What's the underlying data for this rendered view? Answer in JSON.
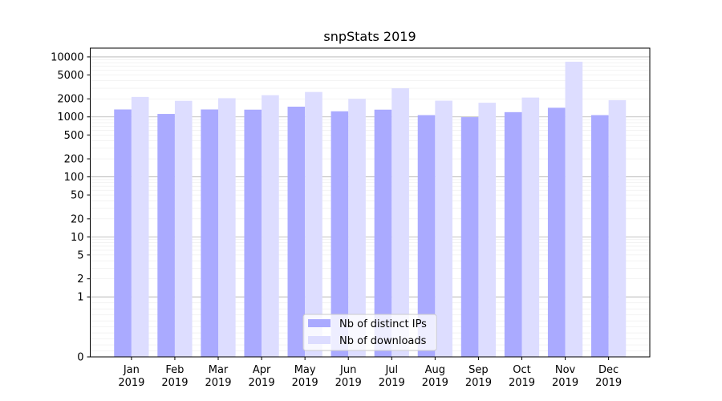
{
  "chart_data": {
    "type": "bar",
    "title": "snpStats 2019",
    "xlabel": "",
    "ylabel": "",
    "yscale": "symlog",
    "ylim": [
      0,
      14000
    ],
    "yticks": [
      0,
      1,
      2,
      5,
      10,
      20,
      50,
      100,
      200,
      500,
      1000,
      2000,
      5000,
      10000
    ],
    "grid": true,
    "legend_position": "bottom-center",
    "categories": [
      "Jan\n2019",
      "Feb\n2019",
      "Mar\n2019",
      "Apr\n2019",
      "May\n2019",
      "Jun\n2019",
      "Jul\n2019",
      "Aug\n2019",
      "Sep\n2019",
      "Oct\n2019",
      "Nov\n2019",
      "Dec\n2019"
    ],
    "series": [
      {
        "name": "Nb of distinct IPs",
        "color": "#aaaaff",
        "values": [
          1330,
          1120,
          1330,
          1320,
          1480,
          1240,
          1320,
          1070,
          990,
          1200,
          1420,
          1070
        ]
      },
      {
        "name": "Nb of downloads",
        "color": "#ddddff",
        "values": [
          2150,
          1850,
          2050,
          2300,
          2600,
          2000,
          3000,
          1860,
          1720,
          2100,
          8300,
          1900
        ]
      }
    ]
  }
}
